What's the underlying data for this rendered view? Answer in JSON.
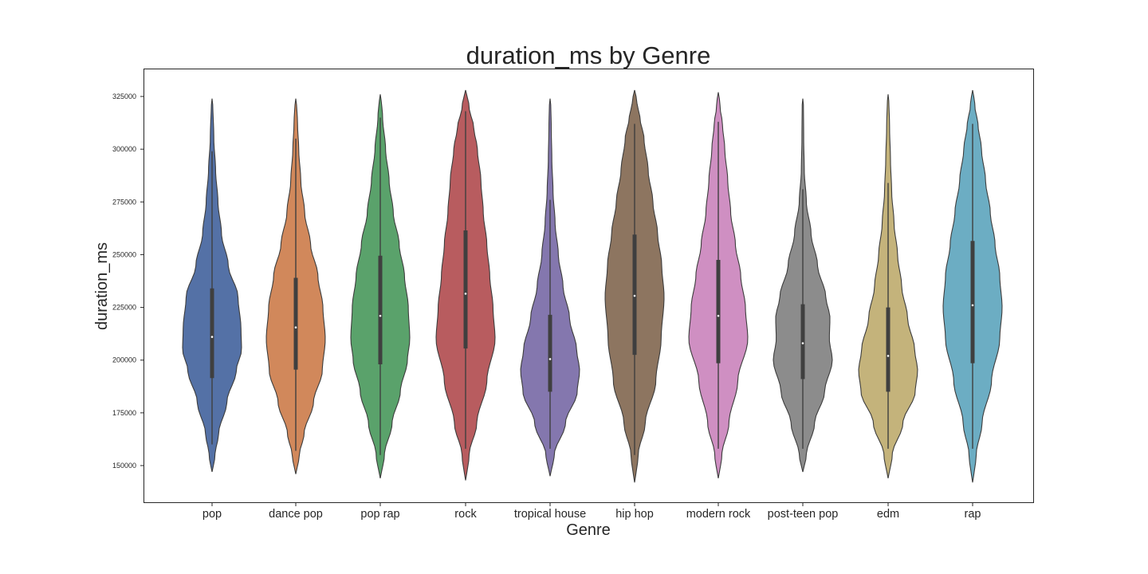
{
  "chart_data": {
    "type": "violin",
    "title": "duration_ms by Genre",
    "xlabel": "Genre",
    "ylabel": "duration_ms",
    "ylim": [
      132000,
      340000
    ],
    "yticks": [
      150000,
      175000,
      200000,
      225000,
      250000,
      275000,
      300000,
      325000
    ],
    "ytick_labels": [
      "150000",
      "175000",
      "200000",
      "225000",
      "250000",
      "275000",
      "300000",
      "325000"
    ],
    "grid": false,
    "categories": [
      "pop",
      "dance pop",
      "pop rap",
      "rock",
      "tropical house",
      "hip hop",
      "modern rock",
      "post-teen pop",
      "edm",
      "rap"
    ],
    "colors": [
      "#5471a6",
      "#d1885b",
      "#5aa26b",
      "#b85c5f",
      "#8477ae",
      "#8d7560",
      "#cf8fc2",
      "#8c8c8c",
      "#c4b37b",
      "#6cadc3"
    ],
    "series": [
      {
        "name": "pop",
        "min": 147000,
        "q1": 191500,
        "median": 211000,
        "q3": 234000,
        "max": 324000,
        "whisker_low": 160000,
        "whisker_high": 299000,
        "density": [
          [
            147000,
            0.02
          ],
          [
            155000,
            0.1
          ],
          [
            165000,
            0.22
          ],
          [
            180000,
            0.5
          ],
          [
            195000,
            0.82
          ],
          [
            205000,
            1.0
          ],
          [
            215000,
            0.98
          ],
          [
            230000,
            0.88
          ],
          [
            245000,
            0.55
          ],
          [
            260000,
            0.32
          ],
          [
            275000,
            0.2
          ],
          [
            290000,
            0.12
          ],
          [
            305000,
            0.06
          ],
          [
            324000,
            0.02
          ]
        ]
      },
      {
        "name": "dance pop",
        "min": 146000,
        "q1": 195500,
        "median": 215500,
        "q3": 239000,
        "max": 324000,
        "whisker_low": 157000,
        "whisker_high": 305000,
        "density": [
          [
            146000,
            0.02
          ],
          [
            155000,
            0.12
          ],
          [
            165000,
            0.28
          ],
          [
            180000,
            0.6
          ],
          [
            195000,
            0.9
          ],
          [
            210000,
            1.0
          ],
          [
            225000,
            0.92
          ],
          [
            240000,
            0.75
          ],
          [
            255000,
            0.5
          ],
          [
            270000,
            0.3
          ],
          [
            285000,
            0.17
          ],
          [
            300000,
            0.1
          ],
          [
            312000,
            0.06
          ],
          [
            324000,
            0.02
          ]
        ]
      },
      {
        "name": "pop rap",
        "min": 144000,
        "q1": 198000,
        "median": 221000,
        "q3": 249500,
        "max": 326000,
        "whisker_low": 155000,
        "whisker_high": 315000,
        "density": [
          [
            144000,
            0.02
          ],
          [
            155000,
            0.14
          ],
          [
            170000,
            0.4
          ],
          [
            185000,
            0.68
          ],
          [
            200000,
            0.92
          ],
          [
            210000,
            1.0
          ],
          [
            225000,
            0.95
          ],
          [
            240000,
            0.82
          ],
          [
            255000,
            0.64
          ],
          [
            270000,
            0.44
          ],
          [
            285000,
            0.3
          ],
          [
            300000,
            0.18
          ],
          [
            315000,
            0.08
          ],
          [
            326000,
            0.02
          ]
        ]
      },
      {
        "name": "rock",
        "min": 143000,
        "q1": 205500,
        "median": 231500,
        "q3": 261500,
        "max": 328000,
        "whisker_low": 158000,
        "whisker_high": 318000,
        "density": [
          [
            143000,
            0.02
          ],
          [
            155000,
            0.12
          ],
          [
            170000,
            0.38
          ],
          [
            190000,
            0.72
          ],
          [
            210000,
            1.0
          ],
          [
            225000,
            0.93
          ],
          [
            240000,
            0.82
          ],
          [
            255000,
            0.72
          ],
          [
            270000,
            0.6
          ],
          [
            285000,
            0.52
          ],
          [
            300000,
            0.4
          ],
          [
            310000,
            0.28
          ],
          [
            320000,
            0.12
          ],
          [
            328000,
            0.02
          ]
        ]
      },
      {
        "name": "tropical house",
        "min": 145000,
        "q1": 185000,
        "median": 200500,
        "q3": 221500,
        "max": 324000,
        "whisker_low": 158000,
        "whisker_high": 276000,
        "density": [
          [
            145000,
            0.02
          ],
          [
            155000,
            0.14
          ],
          [
            170000,
            0.52
          ],
          [
            185000,
            0.92
          ],
          [
            195000,
            1.0
          ],
          [
            205000,
            0.9
          ],
          [
            220000,
            0.66
          ],
          [
            235000,
            0.44
          ],
          [
            250000,
            0.28
          ],
          [
            265000,
            0.17
          ],
          [
            280000,
            0.1
          ],
          [
            295000,
            0.06
          ],
          [
            310000,
            0.04
          ],
          [
            324000,
            0.02
          ]
        ]
      },
      {
        "name": "hip hop",
        "min": 142000,
        "q1": 202500,
        "median": 230500,
        "q3": 259500,
        "max": 328000,
        "whisker_low": 155000,
        "whisker_high": 312000,
        "density": [
          [
            142000,
            0.02
          ],
          [
            155000,
            0.12
          ],
          [
            170000,
            0.36
          ],
          [
            190000,
            0.72
          ],
          [
            210000,
            0.9
          ],
          [
            230000,
            1.0
          ],
          [
            245000,
            0.92
          ],
          [
            260000,
            0.78
          ],
          [
            275000,
            0.62
          ],
          [
            290000,
            0.46
          ],
          [
            305000,
            0.32
          ],
          [
            315000,
            0.18
          ],
          [
            322000,
            0.08
          ],
          [
            328000,
            0.02
          ]
        ]
      },
      {
        "name": "modern rock",
        "min": 144000,
        "q1": 198500,
        "median": 221000,
        "q3": 247500,
        "max": 327000,
        "whisker_low": 158000,
        "whisker_high": 313000,
        "density": [
          [
            144000,
            0.02
          ],
          [
            155000,
            0.12
          ],
          [
            170000,
            0.36
          ],
          [
            190000,
            0.66
          ],
          [
            210000,
            1.0
          ],
          [
            225000,
            0.92
          ],
          [
            240000,
            0.76
          ],
          [
            255000,
            0.58
          ],
          [
            270000,
            0.42
          ],
          [
            285000,
            0.32
          ],
          [
            300000,
            0.22
          ],
          [
            312000,
            0.14
          ],
          [
            320000,
            0.06
          ],
          [
            327000,
            0.02
          ]
        ]
      },
      {
        "name": "post-teen pop",
        "min": 147000,
        "q1": 191000,
        "median": 208000,
        "q3": 226500,
        "max": 324000,
        "whisker_low": 158000,
        "whisker_high": 281000,
        "density": [
          [
            147000,
            0.02
          ],
          [
            155000,
            0.12
          ],
          [
            170000,
            0.4
          ],
          [
            185000,
            0.74
          ],
          [
            200000,
            1.0
          ],
          [
            210000,
            0.9
          ],
          [
            220000,
            0.92
          ],
          [
            230000,
            0.78
          ],
          [
            245000,
            0.5
          ],
          [
            260000,
            0.28
          ],
          [
            275000,
            0.12
          ],
          [
            290000,
            0.05
          ],
          [
            305000,
            0.03
          ],
          [
            324000,
            0.02
          ]
        ]
      },
      {
        "name": "edm",
        "min": 144000,
        "q1": 185000,
        "median": 202000,
        "q3": 225000,
        "max": 326000,
        "whisker_low": 158000,
        "whisker_high": 284000,
        "density": [
          [
            144000,
            0.02
          ],
          [
            155000,
            0.14
          ],
          [
            170000,
            0.5
          ],
          [
            185000,
            0.92
          ],
          [
            195000,
            1.0
          ],
          [
            205000,
            0.9
          ],
          [
            220000,
            0.66
          ],
          [
            235000,
            0.46
          ],
          [
            250000,
            0.32
          ],
          [
            265000,
            0.2
          ],
          [
            280000,
            0.12
          ],
          [
            295000,
            0.08
          ],
          [
            310000,
            0.05
          ],
          [
            326000,
            0.02
          ]
        ]
      },
      {
        "name": "rap",
        "min": 142000,
        "q1": 198500,
        "median": 226000,
        "q3": 256500,
        "max": 328000,
        "whisker_low": 158000,
        "whisker_high": 312000,
        "density": [
          [
            142000,
            0.02
          ],
          [
            155000,
            0.12
          ],
          [
            170000,
            0.32
          ],
          [
            190000,
            0.64
          ],
          [
            210000,
            0.92
          ],
          [
            225000,
            1.0
          ],
          [
            240000,
            0.92
          ],
          [
            255000,
            0.76
          ],
          [
            270000,
            0.6
          ],
          [
            285000,
            0.44
          ],
          [
            300000,
            0.3
          ],
          [
            312000,
            0.18
          ],
          [
            320000,
            0.08
          ],
          [
            328000,
            0.02
          ]
        ]
      }
    ]
  }
}
